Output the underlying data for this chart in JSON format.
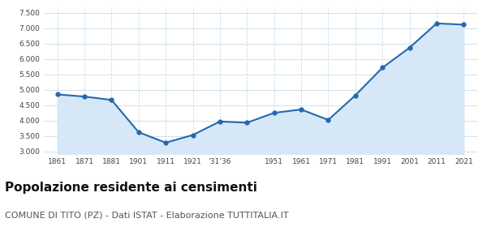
{
  "years": [
    1861,
    1871,
    1881,
    1901,
    1911,
    1921,
    1931,
    1936,
    1951,
    1961,
    1971,
    1981,
    1991,
    2001,
    2011,
    2021
  ],
  "values": [
    4850,
    4780,
    4670,
    3620,
    3280,
    3530,
    3970,
    3930,
    4250,
    4360,
    4020,
    4820,
    5720,
    6370,
    7160,
    7120
  ],
  "xtick_labels": [
    "1861",
    "1871",
    "1881",
    "1901",
    "1911",
    "1921",
    "’31’36",
    "",
    "1951",
    "1961",
    "1971",
    "1981",
    "1991",
    "2001",
    "2011",
    "2021"
  ],
  "line_color": "#2368b0",
  "fill_color": "#d6e8f7",
  "marker": "o",
  "marker_size": 3.5,
  "ylim": [
    2900,
    7700
  ],
  "yticks": [
    3000,
    3500,
    4000,
    4500,
    5000,
    5500,
    6000,
    6500,
    7000,
    7500
  ],
  "title": "Popolazione residente ai censimenti",
  "subtitle": "COMUNE DI TITO (PZ) - Dati ISTAT - Elaborazione TUTTITALIA.IT",
  "title_fontsize": 11,
  "subtitle_fontsize": 8,
  "grid_color": "#c8dce8",
  "bg_color": "#ffffff"
}
